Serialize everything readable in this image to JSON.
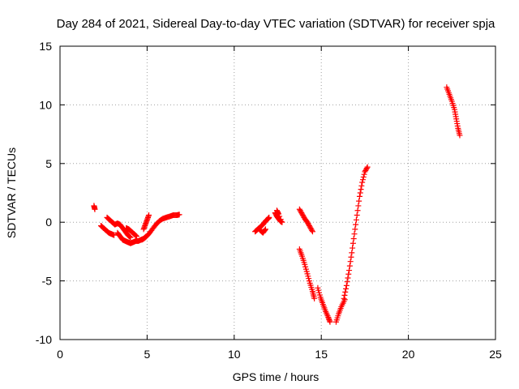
{
  "chart_data": {
    "type": "scatter",
    "title": "Day 284 of 2021, Sidereal Day-to-day VTEC variation (SDTVAR) for receiver spja",
    "xlabel": "GPS time / hours",
    "ylabel": "SDTVAR / TECUs",
    "xlim": [
      0,
      25
    ],
    "ylim": [
      -10,
      15
    ],
    "xticks": [
      "0",
      "5",
      "10",
      "15",
      "20",
      "25"
    ],
    "yticks": [
      "-10",
      "-5",
      "0",
      "5",
      "10",
      "15"
    ],
    "grid": true,
    "marker": "plus",
    "color": "#ff0000",
    "segments": [
      {
        "points": [
          [
            1.95,
            1.4
          ],
          [
            2.0,
            1.1
          ]
        ]
      },
      {
        "points": [
          [
            2.35,
            -0.3
          ],
          [
            2.5,
            -0.5
          ],
          [
            2.65,
            -0.7
          ],
          [
            2.8,
            -0.9
          ],
          [
            2.95,
            -1.0
          ],
          [
            3.1,
            -1.1
          ]
        ]
      },
      {
        "points": [
          [
            2.7,
            0.4
          ],
          [
            2.85,
            0.2
          ],
          [
            3.0,
            0.0
          ],
          [
            3.15,
            -0.2
          ],
          [
            3.3,
            -0.1
          ],
          [
            3.45,
            -0.2
          ],
          [
            3.6,
            -0.5
          ],
          [
            3.75,
            -0.8
          ],
          [
            3.9,
            -1.1
          ],
          [
            4.05,
            -1.3
          ]
        ]
      },
      {
        "points": [
          [
            3.3,
            -0.9
          ],
          [
            3.45,
            -1.2
          ],
          [
            3.6,
            -1.5
          ],
          [
            3.75,
            -1.6
          ],
          [
            3.9,
            -1.7
          ],
          [
            4.05,
            -1.8
          ],
          [
            4.2,
            -1.7
          ],
          [
            4.35,
            -1.6
          ],
          [
            4.5,
            -1.6
          ],
          [
            4.65,
            -1.5
          ],
          [
            4.8,
            -1.4
          ],
          [
            4.95,
            -1.2
          ]
        ]
      },
      {
        "points": [
          [
            3.8,
            -0.5
          ],
          [
            3.95,
            -0.6
          ],
          [
            4.1,
            -0.8
          ],
          [
            4.25,
            -1.0
          ],
          [
            4.4,
            -1.2
          ]
        ]
      },
      {
        "points": [
          [
            4.8,
            -0.6
          ],
          [
            4.9,
            -0.2
          ],
          [
            5.0,
            0.2
          ],
          [
            5.1,
            0.6
          ]
        ]
      },
      {
        "points": [
          [
            4.7,
            -1.5
          ],
          [
            4.9,
            -1.3
          ],
          [
            5.1,
            -1.0
          ],
          [
            5.3,
            -0.6
          ],
          [
            5.5,
            -0.2
          ],
          [
            5.7,
            0.1
          ],
          [
            5.9,
            0.3
          ],
          [
            6.1,
            0.4
          ],
          [
            6.3,
            0.5
          ],
          [
            6.5,
            0.6
          ],
          [
            6.7,
            0.6
          ],
          [
            6.85,
            0.65
          ]
        ]
      },
      {
        "points": [
          [
            11.2,
            -0.8
          ],
          [
            11.35,
            -0.6
          ],
          [
            11.5,
            -0.4
          ],
          [
            11.65,
            -0.2
          ],
          [
            11.8,
            0.1
          ],
          [
            11.95,
            0.3
          ],
          [
            12.0,
            0.4
          ]
        ]
      },
      {
        "points": [
          [
            11.5,
            -0.7
          ],
          [
            11.65,
            -0.9
          ],
          [
            11.8,
            -0.6
          ]
        ]
      },
      {
        "points": [
          [
            12.35,
            0.8
          ],
          [
            12.45,
            0.5
          ],
          [
            12.55,
            0.3
          ],
          [
            12.65,
            0.1
          ],
          [
            12.75,
            0.0
          ],
          [
            12.45,
            1.0
          ],
          [
            12.55,
            0.7
          ]
        ]
      },
      {
        "points": [
          [
            13.75,
            1.1
          ],
          [
            13.9,
            0.7
          ],
          [
            14.05,
            0.3
          ],
          [
            14.2,
            0.0
          ],
          [
            14.35,
            -0.4
          ],
          [
            14.5,
            -0.8
          ]
        ]
      },
      {
        "points": [
          [
            13.75,
            -2.3
          ],
          [
            13.9,
            -2.9
          ],
          [
            14.05,
            -3.6
          ],
          [
            14.2,
            -4.4
          ],
          [
            14.35,
            -5.2
          ],
          [
            14.5,
            -5.9
          ],
          [
            14.6,
            -6.5
          ]
        ]
      },
      {
        "points": [
          [
            14.8,
            -5.6
          ],
          [
            14.95,
            -6.4
          ],
          [
            15.1,
            -7.0
          ],
          [
            15.25,
            -7.6
          ],
          [
            15.4,
            -8.1
          ],
          [
            15.5,
            -8.5
          ]
        ]
      },
      {
        "points": [
          [
            15.85,
            -8.5
          ],
          [
            16.0,
            -7.8
          ],
          [
            16.15,
            -7.2
          ],
          [
            16.35,
            -6.6
          ]
        ]
      },
      {
        "points": [
          [
            16.3,
            -6.5
          ],
          [
            16.45,
            -5.4
          ],
          [
            16.6,
            -4.1
          ],
          [
            16.75,
            -2.6
          ],
          [
            16.9,
            -1.0
          ],
          [
            17.05,
            0.6
          ],
          [
            17.2,
            2.2
          ],
          [
            17.35,
            3.4
          ],
          [
            17.5,
            4.3
          ],
          [
            17.65,
            4.7
          ]
        ]
      },
      {
        "points": [
          [
            22.2,
            11.5
          ],
          [
            22.35,
            10.9
          ],
          [
            22.5,
            10.3
          ],
          [
            22.65,
            9.6
          ],
          [
            22.75,
            8.8
          ],
          [
            22.85,
            8.0
          ],
          [
            22.95,
            7.4
          ]
        ]
      }
    ]
  }
}
